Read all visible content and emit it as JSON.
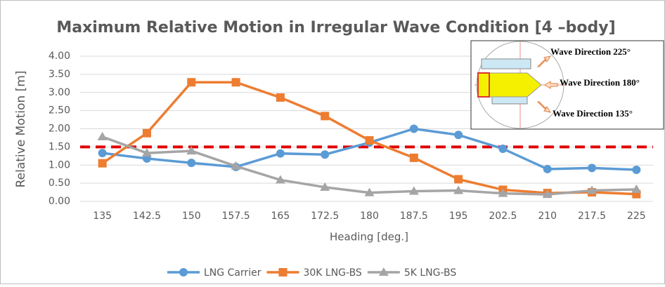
{
  "chart_data": {
    "type": "line",
    "title": "Maximum Relative Motion in Irregular Wave Condition [4 –body]",
    "x_label": "Heading [deg.]",
    "y_label": "Relative Motion [m]",
    "categories": [
      "135",
      "142.5",
      "150",
      "157.5",
      "165",
      "172.5",
      "180",
      "187.5",
      "195",
      "202.5",
      "210",
      "217.5",
      "225"
    ],
    "series": [
      {
        "name": "LNG Carrier",
        "color": "#5b9bd5",
        "marker": "circle",
        "values": [
          1.33,
          1.18,
          1.06,
          0.95,
          1.32,
          1.29,
          1.62,
          2.0,
          1.83,
          1.45,
          0.89,
          0.92,
          0.87
        ]
      },
      {
        "name": "30K LNG-BS",
        "color": "#ed7d31",
        "marker": "square",
        "values": [
          1.05,
          1.88,
          3.28,
          3.28,
          2.86,
          2.35,
          1.68,
          1.2,
          0.61,
          0.32,
          0.23,
          0.25,
          0.2
        ]
      },
      {
        "name": "5K LNG-BS",
        "color": "#a5a5a5",
        "marker": "triangle",
        "values": [
          1.78,
          1.33,
          1.39,
          0.97,
          0.59,
          0.39,
          0.24,
          0.28,
          0.3,
          0.22,
          0.19,
          0.3,
          0.33
        ]
      }
    ],
    "reference_line": {
      "value": 1.5,
      "color": "#e00000"
    },
    "ylim": [
      0,
      4
    ],
    "yticks": [
      {
        "value": 0,
        "label": "0.00"
      },
      {
        "value": 0.5,
        "label": "0.50"
      },
      {
        "value": 1,
        "label": "1.00"
      },
      {
        "value": 1.5,
        "label": "1.50"
      },
      {
        "value": 2,
        "label": "2.00"
      },
      {
        "value": 2.5,
        "label": "2.50"
      },
      {
        "value": 3,
        "label": "3.00"
      },
      {
        "value": 3.5,
        "label": "3.50"
      },
      {
        "value": 4,
        "label": "4.00"
      }
    ],
    "grid": true,
    "legend": "bottom",
    "annotations": [
      "Wave Direction 225°",
      "Wave Direction 180°",
      "Wave Direction 135°"
    ]
  }
}
